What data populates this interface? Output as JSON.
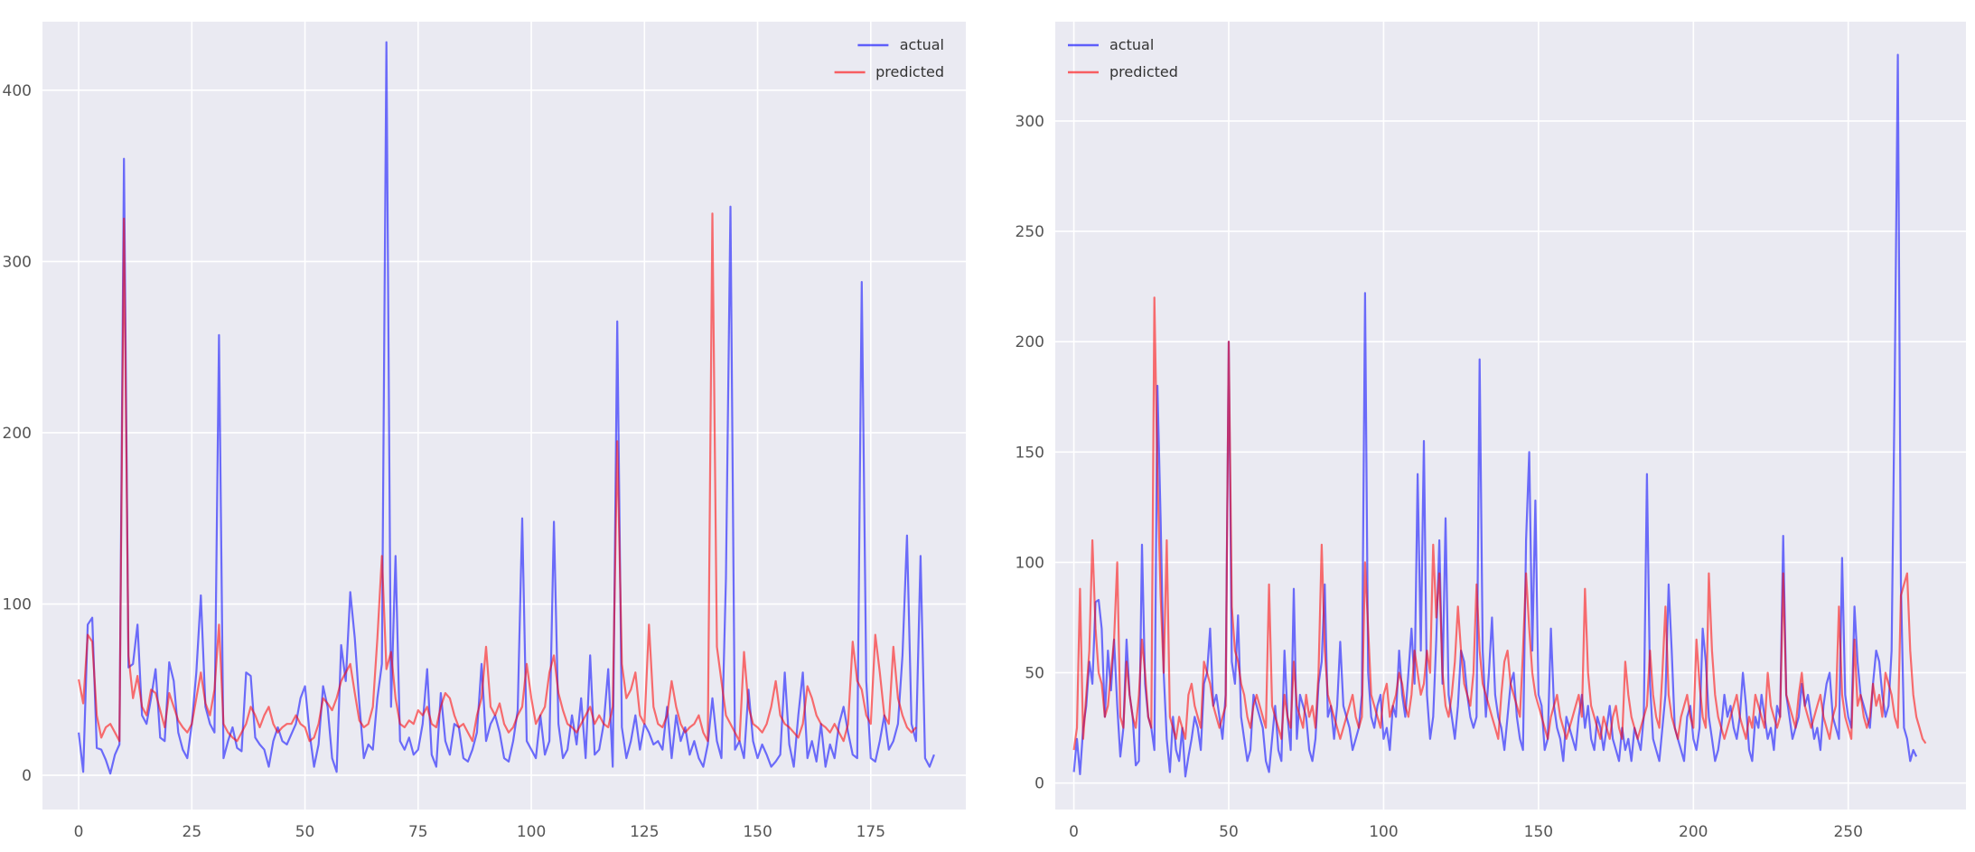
{
  "chart_data": [
    {
      "type": "line",
      "title": "",
      "xlabel": "",
      "ylabel": "",
      "xlim": [
        -8,
        196
      ],
      "ylim": [
        -20,
        440
      ],
      "xticks": [
        0,
        25,
        50,
        75,
        100,
        125,
        150,
        175
      ],
      "yticks": [
        0,
        100,
        200,
        300,
        400
      ],
      "grid": true,
      "legend": "top-right",
      "series": [
        {
          "name": "actual",
          "color": "#0000ff",
          "values": [
            25,
            2,
            88,
            92,
            16,
            15,
            9,
            1,
            12,
            18,
            360,
            63,
            65,
            88,
            35,
            30,
            45,
            62,
            22,
            20,
            66,
            55,
            25,
            15,
            10,
            30,
            60,
            105,
            40,
            30,
            25,
            257,
            10,
            20,
            28,
            16,
            14,
            60,
            58,
            22,
            18,
            15,
            5,
            20,
            28,
            20,
            18,
            24,
            30,
            45,
            52,
            25,
            5,
            18,
            52,
            40,
            10,
            2,
            76,
            55,
            107,
            80,
            42,
            10,
            18,
            15,
            45,
            65,
            428,
            40,
            128,
            20,
            15,
            22,
            12,
            15,
            30,
            62,
            12,
            5,
            48,
            20,
            12,
            30,
            28,
            10,
            8,
            15,
            25,
            65,
            20,
            30,
            35,
            25,
            10,
            8,
            20,
            38,
            150,
            20,
            15,
            10,
            35,
            12,
            20,
            148,
            30,
            10,
            15,
            35,
            18,
            45,
            10,
            70,
            12,
            15,
            30,
            62,
            5,
            265,
            28,
            10,
            20,
            35,
            15,
            30,
            25,
            18,
            20,
            15,
            40,
            10,
            35,
            20,
            28,
            12,
            20,
            10,
            5,
            18,
            45,
            20,
            10,
            115,
            332,
            15,
            20,
            10,
            50,
            20,
            10,
            18,
            12,
            5,
            8,
            12,
            60,
            18,
            5,
            35,
            60,
            10,
            20,
            8,
            30,
            5,
            18,
            10,
            30,
            40,
            25,
            12,
            10,
            288,
            55,
            10,
            8,
            20,
            35,
            15,
            20,
            30,
            70,
            140,
            30,
            20,
            128,
            10,
            5,
            12
          ]
        },
        {
          "name": "predicted",
          "color": "#ff0000",
          "values": [
            56,
            42,
            82,
            78,
            35,
            22,
            28,
            30,
            25,
            20,
            325,
            70,
            45,
            58,
            40,
            35,
            50,
            48,
            38,
            28,
            48,
            40,
            32,
            28,
            25,
            30,
            45,
            60,
            42,
            35,
            50,
            88,
            30,
            25,
            22,
            20,
            25,
            30,
            40,
            35,
            28,
            35,
            40,
            30,
            25,
            28,
            30,
            30,
            35,
            30,
            28,
            20,
            22,
            30,
            45,
            42,
            38,
            45,
            55,
            60,
            65,
            48,
            32,
            28,
            30,
            40,
            80,
            128,
            62,
            72,
            45,
            30,
            28,
            32,
            30,
            38,
            35,
            40,
            30,
            28,
            40,
            48,
            45,
            35,
            28,
            30,
            25,
            20,
            35,
            45,
            75,
            40,
            35,
            42,
            30,
            25,
            28,
            35,
            40,
            65,
            45,
            30,
            35,
            40,
            60,
            70,
            48,
            38,
            30,
            28,
            25,
            30,
            35,
            40,
            30,
            35,
            30,
            28,
            40,
            195,
            65,
            45,
            50,
            60,
            35,
            30,
            88,
            40,
            30,
            28,
            35,
            55,
            40,
            30,
            25,
            28,
            30,
            35,
            25,
            20,
            328,
            75,
            55,
            35,
            30,
            25,
            20,
            72,
            40,
            30,
            28,
            25,
            30,
            40,
            55,
            35,
            30,
            28,
            25,
            22,
            30,
            52,
            45,
            35,
            30,
            28,
            25,
            30,
            25,
            20,
            30,
            78,
            55,
            50,
            35,
            30,
            82,
            60,
            35,
            30,
            75,
            45,
            35,
            28,
            25,
            28
          ]
        }
      ]
    },
    {
      "type": "line",
      "title": "",
      "xlabel": "",
      "ylabel": "",
      "xlim": [
        -6,
        288
      ],
      "ylim": [
        -12,
        345
      ],
      "xticks": [
        0,
        50,
        100,
        150,
        200,
        250
      ],
      "yticks": [
        0,
        50,
        100,
        150,
        200,
        250,
        300
      ],
      "grid": true,
      "legend": "top-left",
      "series": [
        {
          "name": "actual",
          "color": "#0000ff",
          "values": [
            5,
            20,
            4,
            25,
            35,
            55,
            45,
            82,
            83,
            70,
            30,
            60,
            42,
            65,
            35,
            12,
            25,
            65,
            40,
            30,
            8,
            10,
            108,
            45,
            30,
            25,
            15,
            180,
            120,
            50,
            20,
            5,
            30,
            15,
            10,
            25,
            3,
            12,
            20,
            30,
            25,
            15,
            45,
            50,
            70,
            35,
            40,
            30,
            20,
            40,
            200,
            55,
            45,
            76,
            30,
            20,
            10,
            15,
            40,
            35,
            30,
            25,
            10,
            5,
            20,
            35,
            15,
            10,
            60,
            30,
            15,
            88,
            20,
            40,
            35,
            30,
            15,
            10,
            20,
            45,
            55,
            90,
            30,
            35,
            20,
            35,
            64,
            35,
            30,
            25,
            15,
            20,
            25,
            40,
            222,
            50,
            30,
            25,
            35,
            40,
            20,
            25,
            15,
            35,
            30,
            60,
            40,
            30,
            50,
            70,
            45,
            140,
            60,
            155,
            40,
            20,
            30,
            65,
            110,
            45,
            120,
            40,
            30,
            20,
            35,
            60,
            55,
            40,
            30,
            25,
            30,
            192,
            60,
            30,
            50,
            75,
            40,
            30,
            25,
            15,
            30,
            45,
            50,
            30,
            20,
            15,
            110,
            150,
            60,
            128,
            40,
            35,
            15,
            20,
            70,
            35,
            25,
            20,
            10,
            30,
            25,
            20,
            15,
            30,
            40,
            25,
            35,
            20,
            15,
            30,
            25,
            15,
            25,
            35,
            20,
            15,
            10,
            25,
            15,
            20,
            10,
            25,
            20,
            15,
            30,
            140,
            45,
            20,
            15,
            10,
            25,
            40,
            90,
            60,
            25,
            20,
            15,
            10,
            30,
            35,
            20,
            15,
            25,
            70,
            55,
            30,
            20,
            10,
            15,
            25,
            40,
            30,
            35,
            25,
            20,
            30,
            50,
            35,
            15,
            10,
            30,
            25,
            40,
            30,
            20,
            25,
            15,
            35,
            30,
            112,
            40,
            30,
            20,
            25,
            30,
            45,
            35,
            40,
            30,
            20,
            25,
            15,
            35,
            45,
            50,
            30,
            25,
            20,
            102,
            40,
            30,
            25,
            80,
            55,
            40,
            35,
            30,
            25,
            45,
            60,
            55,
            40,
            30,
            35,
            60,
            180,
            330,
            90,
            25,
            20,
            10,
            15,
            12
          ]
        },
        {
          "name": "predicted",
          "color": "#ff0000",
          "values": [
            15,
            25,
            88,
            20,
            40,
            60,
            110,
            70,
            50,
            45,
            30,
            35,
            50,
            65,
            100,
            30,
            25,
            55,
            40,
            30,
            25,
            40,
            65,
            50,
            30,
            25,
            220,
            140,
            85,
            50,
            110,
            30,
            25,
            20,
            30,
            25,
            20,
            40,
            45,
            35,
            30,
            25,
            55,
            50,
            45,
            35,
            30,
            25,
            30,
            35,
            200,
            80,
            60,
            55,
            45,
            40,
            30,
            25,
            35,
            40,
            35,
            30,
            25,
            90,
            35,
            30,
            25,
            20,
            40,
            30,
            25,
            55,
            35,
            30,
            25,
            40,
            30,
            35,
            25,
            50,
            108,
            60,
            40,
            35,
            30,
            25,
            20,
            25,
            30,
            35,
            40,
            30,
            25,
            30,
            100,
            70,
            40,
            35,
            30,
            25,
            40,
            45,
            30,
            35,
            40,
            50,
            45,
            35,
            30,
            40,
            60,
            50,
            40,
            45,
            60,
            50,
            108,
            75,
            95,
            50,
            35,
            30,
            40,
            55,
            80,
            60,
            45,
            40,
            35,
            50,
            90,
            60,
            45,
            40,
            35,
            30,
            25,
            20,
            40,
            55,
            60,
            45,
            40,
            35,
            30,
            60,
            95,
            70,
            50,
            40,
            35,
            30,
            25,
            20,
            30,
            35,
            40,
            30,
            25,
            20,
            25,
            30,
            35,
            40,
            30,
            88,
            50,
            35,
            30,
            25,
            20,
            30,
            25,
            20,
            30,
            35,
            25,
            20,
            55,
            40,
            30,
            25,
            20,
            25,
            30,
            35,
            60,
            40,
            30,
            25,
            50,
            80,
            40,
            30,
            25,
            20,
            30,
            35,
            40,
            30,
            25,
            65,
            45,
            30,
            25,
            95,
            60,
            40,
            30,
            25,
            20,
            25,
            30,
            35,
            40,
            30,
            25,
            20,
            30,
            25,
            40,
            35,
            30,
            25,
            50,
            35,
            30,
            25,
            30,
            95,
            40,
            35,
            30,
            25,
            40,
            50,
            35,
            30,
            25,
            30,
            35,
            40,
            30,
            25,
            20,
            30,
            35,
            80,
            40,
            30,
            25,
            20,
            65,
            35,
            40,
            30,
            25,
            30,
            45,
            35,
            40,
            30,
            50,
            45,
            40,
            30,
            25,
            85,
            90,
            95,
            60,
            40,
            30,
            25,
            20,
            18
          ]
        }
      ]
    }
  ]
}
